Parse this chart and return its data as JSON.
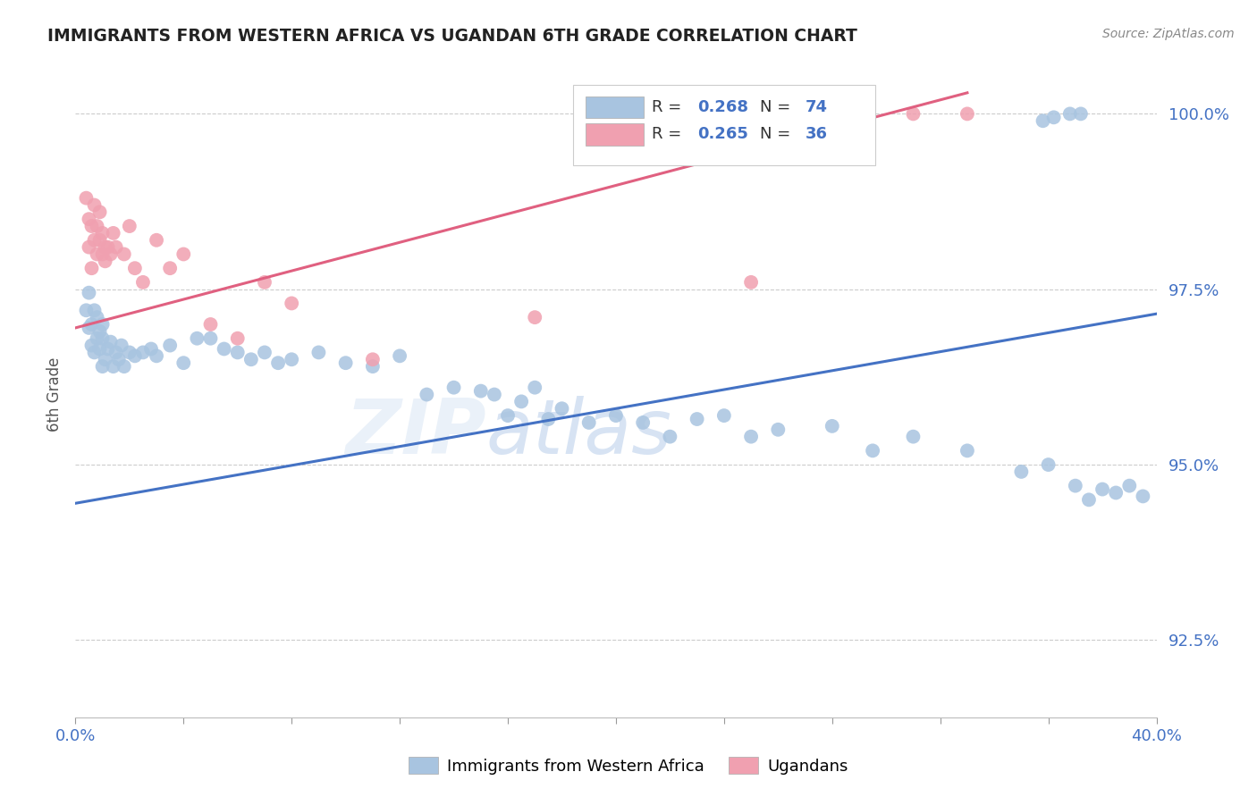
{
  "title": "IMMIGRANTS FROM WESTERN AFRICA VS UGANDAN 6TH GRADE CORRELATION CHART",
  "source": "Source: ZipAtlas.com",
  "ylabel": "6th Grade",
  "xlim": [
    0.0,
    0.4
  ],
  "ylim": [
    0.914,
    1.006
  ],
  "yticks": [
    0.925,
    0.95,
    0.975,
    1.0
  ],
  "ytick_labels": [
    "92.5%",
    "95.0%",
    "97.5%",
    "100.0%"
  ],
  "xticks": [
    0.0,
    0.04,
    0.08,
    0.12,
    0.16,
    0.2,
    0.24,
    0.28,
    0.32,
    0.36,
    0.4
  ],
  "xtick_labels": [
    "0.0%",
    "",
    "",
    "",
    "",
    "",
    "",
    "",
    "",
    "",
    "40.0%"
  ],
  "legend_blue_label": "Immigrants from Western Africa",
  "legend_pink_label": "Ugandans",
  "R_blue": 0.268,
  "N_blue": 74,
  "R_pink": 0.265,
  "N_pink": 36,
  "blue_color": "#a8c4e0",
  "pink_color": "#f0a0b0",
  "blue_line_color": "#4472c4",
  "pink_line_color": "#e06080",
  "axis_color": "#4472c4",
  "title_color": "#222222",
  "source_color": "#888888",
  "blue_line_x": [
    0.0,
    0.4
  ],
  "blue_line_y": [
    0.9445,
    0.9715
  ],
  "pink_line_x": [
    0.0,
    0.33
  ],
  "pink_line_y": [
    0.9695,
    1.003
  ],
  "blue_scatter_x": [
    0.004,
    0.005,
    0.005,
    0.006,
    0.006,
    0.007,
    0.007,
    0.008,
    0.008,
    0.009,
    0.009,
    0.01,
    0.01,
    0.01,
    0.011,
    0.012,
    0.013,
    0.014,
    0.015,
    0.016,
    0.017,
    0.018,
    0.02,
    0.022,
    0.025,
    0.028,
    0.03,
    0.035,
    0.04,
    0.045,
    0.05,
    0.055,
    0.06,
    0.065,
    0.07,
    0.075,
    0.08,
    0.09,
    0.1,
    0.11,
    0.12,
    0.13,
    0.14,
    0.15,
    0.155,
    0.16,
    0.165,
    0.17,
    0.175,
    0.18,
    0.19,
    0.2,
    0.21,
    0.22,
    0.23,
    0.24,
    0.25,
    0.26,
    0.28,
    0.295,
    0.31,
    0.33,
    0.35,
    0.36,
    0.37,
    0.375,
    0.38,
    0.385,
    0.39,
    0.395,
    0.358,
    0.362,
    0.368,
    0.372
  ],
  "blue_scatter_y": [
    0.972,
    0.9745,
    0.9695,
    0.967,
    0.97,
    0.966,
    0.972,
    0.968,
    0.971,
    0.9665,
    0.969,
    0.964,
    0.968,
    0.97,
    0.965,
    0.9665,
    0.9675,
    0.964,
    0.966,
    0.965,
    0.967,
    0.964,
    0.966,
    0.9655,
    0.966,
    0.9665,
    0.9655,
    0.967,
    0.9645,
    0.968,
    0.968,
    0.9665,
    0.966,
    0.965,
    0.966,
    0.9645,
    0.965,
    0.966,
    0.9645,
    0.964,
    0.9655,
    0.96,
    0.961,
    0.9605,
    0.96,
    0.957,
    0.959,
    0.961,
    0.9565,
    0.958,
    0.956,
    0.957,
    0.956,
    0.954,
    0.9565,
    0.957,
    0.954,
    0.955,
    0.9555,
    0.952,
    0.954,
    0.952,
    0.949,
    0.95,
    0.947,
    0.945,
    0.9465,
    0.946,
    0.947,
    0.9455,
    0.999,
    0.9995,
    1.0,
    1.0
  ],
  "pink_scatter_x": [
    0.004,
    0.005,
    0.005,
    0.006,
    0.006,
    0.007,
    0.007,
    0.008,
    0.008,
    0.009,
    0.009,
    0.01,
    0.01,
    0.011,
    0.011,
    0.012,
    0.013,
    0.014,
    0.015,
    0.018,
    0.02,
    0.022,
    0.025,
    0.03,
    0.035,
    0.04,
    0.05,
    0.06,
    0.07,
    0.08,
    0.11,
    0.17,
    0.25,
    0.285,
    0.31,
    0.33
  ],
  "pink_scatter_y": [
    0.988,
    0.981,
    0.985,
    0.984,
    0.978,
    0.982,
    0.987,
    0.98,
    0.984,
    0.982,
    0.986,
    0.98,
    0.983,
    0.981,
    0.979,
    0.981,
    0.98,
    0.983,
    0.981,
    0.98,
    0.984,
    0.978,
    0.976,
    0.982,
    0.978,
    0.98,
    0.97,
    0.968,
    0.976,
    0.973,
    0.965,
    0.971,
    0.976,
    0.999,
    1.0,
    1.0
  ]
}
